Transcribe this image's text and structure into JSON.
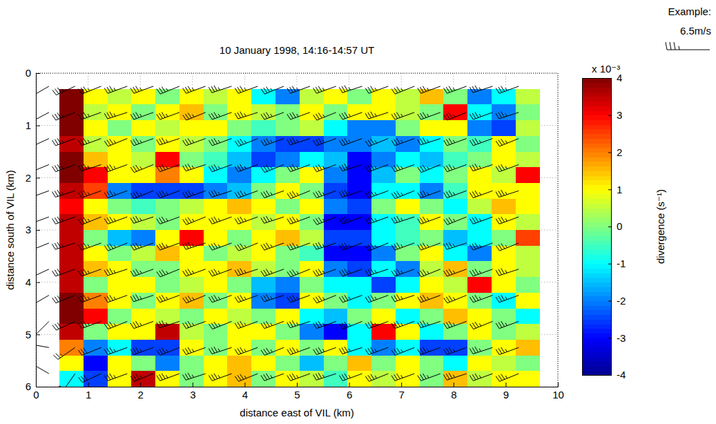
{
  "chart_data": {
    "type": "heatmap",
    "title": "10 January 1998, 14:16-14:57 UT",
    "xlabel": "distance east of VIL (km)",
    "ylabel": "distance south of VIL (km)",
    "xlim": [
      0,
      10
    ],
    "ylim": [
      0,
      6
    ],
    "xticks": [
      0,
      1,
      2,
      3,
      4,
      5,
      6,
      7,
      8,
      9,
      10
    ],
    "yticks": [
      0,
      1,
      2,
      3,
      4,
      5,
      6
    ],
    "grid": true,
    "divergence": {
      "label": "divergence (s⁻¹)",
      "multiplier_label": "x 10⁻³",
      "clim": [
        -4,
        4
      ],
      "cticks": [
        -4,
        -3,
        -2,
        -1,
        0,
        1,
        2,
        3,
        4
      ],
      "x_edges": [
        0.45,
        0.91,
        1.37,
        1.83,
        2.29,
        2.75,
        3.21,
        3.67,
        4.13,
        4.59,
        5.05,
        5.51,
        5.97,
        6.43,
        6.89,
        7.35,
        7.81,
        8.27,
        8.73,
        9.19,
        9.65
      ],
      "y_edges": [
        0.3,
        0.6,
        0.9,
        1.2,
        1.5,
        1.8,
        2.1,
        2.4,
        2.7,
        3.0,
        3.3,
        3.6,
        3.9,
        4.2,
        4.5,
        4.8,
        5.1,
        5.4,
        5.7,
        6.0
      ],
      "values": [
        [
          4,
          1,
          0.5,
          1,
          0,
          1,
          0.5,
          1,
          -1,
          -2,
          0.5,
          1,
          0,
          1,
          0.5,
          1.5,
          0,
          -2,
          -1,
          0.5
        ],
        [
          4,
          0.5,
          1,
          0,
          1,
          1.5,
          0,
          1,
          0.5,
          0,
          1,
          0,
          1,
          1,
          0.5,
          0,
          3,
          -1,
          -2,
          0
        ],
        [
          4,
          1,
          0,
          1,
          0.5,
          1,
          1,
          0,
          -0.5,
          0,
          0.5,
          -1,
          -2,
          -2,
          0,
          1,
          1,
          -2,
          -2.5,
          0.5
        ],
        [
          3.5,
          0.5,
          1,
          0,
          1,
          0.5,
          0,
          -1,
          -2,
          -2.5,
          -2.5,
          -2,
          -2,
          -1.5,
          -2,
          -1,
          0,
          -0.5,
          1,
          0
        ],
        [
          4,
          1.5,
          1,
          0.5,
          3,
          0,
          -0.5,
          -1.5,
          -2.5,
          -2,
          -1,
          -1.5,
          -3,
          -2,
          -1,
          -1.5,
          -0.5,
          0,
          1,
          0.5
        ],
        [
          4,
          3,
          1,
          1,
          2,
          1,
          -1,
          -2,
          -1,
          0,
          1,
          -2,
          -3,
          -1.5,
          0,
          -1,
          0,
          1,
          0.5,
          3
        ],
        [
          3.5,
          2.5,
          -2,
          -2.5,
          -2.5,
          -2.5,
          -2,
          -1.5,
          0,
          1,
          0,
          -2.5,
          -3,
          -1,
          -1,
          -2,
          -0.5,
          1,
          1,
          1
        ],
        [
          3,
          1,
          0,
          -0.5,
          0,
          0.5,
          1,
          1.5,
          1,
          0,
          1,
          -2,
          -2.5,
          0,
          1,
          0,
          -1,
          0.5,
          1.5,
          1
        ],
        [
          3.5,
          1.5,
          1,
          0.5,
          0,
          1,
          1,
          1,
          0.5,
          1,
          0,
          -3,
          -3,
          -1,
          -0.5,
          1,
          0,
          -1,
          1,
          0.5
        ],
        [
          3.5,
          0,
          -1.5,
          -2,
          1,
          3,
          1,
          0,
          1,
          1.5,
          0.5,
          -2.5,
          -2.5,
          -1,
          -0.5,
          0,
          -1.5,
          -1,
          0,
          2.5
        ],
        [
          3.5,
          1,
          0,
          0.5,
          1.5,
          1,
          0,
          0.5,
          1,
          0,
          -0.5,
          -3,
          -3,
          -2,
          0,
          1,
          -1,
          -2,
          1,
          0.5
        ],
        [
          3.5,
          1.5,
          1,
          0,
          0,
          1,
          1,
          1.5,
          0.5,
          0,
          1,
          -2,
          -2.5,
          -1,
          -2,
          0.5,
          1.5,
          0,
          1,
          0.5
        ],
        [
          3.5,
          0,
          1,
          1,
          0,
          0.5,
          1,
          0,
          -1.5,
          -2,
          0,
          -1,
          -1,
          -2.5,
          -1,
          1,
          0.5,
          3,
          1,
          0
        ],
        [
          4,
          2,
          1,
          0,
          1,
          1.5,
          0,
          1,
          -2,
          -2.5,
          1,
          0,
          -1,
          0,
          1,
          1.5,
          1,
          0,
          -1,
          1
        ],
        [
          4,
          3,
          0,
          1,
          0.5,
          0,
          1,
          0.5,
          0,
          1,
          -1,
          -1.5,
          0,
          1,
          -1,
          0,
          1.5,
          1,
          0,
          -1
        ],
        [
          3.5,
          0,
          1,
          1,
          3.5,
          0.5,
          0,
          1,
          1,
          0,
          -2,
          -3,
          -1,
          3,
          1,
          -1,
          0,
          1,
          0,
          0.5
        ],
        [
          2,
          -2,
          -1,
          -2.5,
          -2.5,
          1,
          0,
          1,
          0,
          1,
          0,
          1,
          -1,
          -2,
          -1,
          -2.5,
          -2.5,
          0,
          1,
          1.5
        ],
        [
          1,
          -3,
          1,
          0,
          -2,
          0,
          1,
          1.5,
          1,
          0,
          -1.5,
          0,
          1.5,
          0,
          1,
          0,
          -1,
          1,
          0.5,
          0
        ],
        [
          -1,
          -2.5,
          1,
          3.5,
          1,
          0,
          1,
          1.5,
          0,
          1,
          0.5,
          -0.5,
          1,
          0.5,
          1,
          0,
          1.5,
          0.5,
          1,
          1
        ]
      ]
    },
    "barbs": {
      "x": [
        0.25,
        0.75,
        1.25,
        1.75,
        2.25,
        2.75,
        3.25,
        3.75,
        4.25,
        4.75,
        5.25,
        5.75,
        6.25,
        6.75,
        7.25,
        7.75,
        8.25,
        8.75,
        9.25
      ],
      "y": [
        0.25,
        0.75,
        1.25,
        1.75,
        2.25,
        2.75,
        3.25,
        3.75,
        4.25,
        4.75,
        5.25,
        5.75
      ],
      "speed": [
        [
          6,
          6.5,
          6.5,
          7,
          6.5,
          6.5,
          7,
          6.5,
          6.5,
          6.5,
          7,
          6.5,
          6.5,
          7,
          6.5,
          6.5,
          6.5,
          7,
          6.5
        ],
        [
          6,
          6.5,
          7,
          6.5,
          6.5,
          6.5,
          6.5,
          7,
          6.5,
          7,
          6.5,
          6.5,
          6.5,
          6.5,
          7,
          6.5,
          7,
          6.5,
          6.5
        ],
        [
          6,
          7,
          6.5,
          6.5,
          7,
          6.5,
          6.5,
          6.5,
          7,
          6.5,
          6.5,
          7,
          6.5,
          6.5,
          6.5,
          7,
          6.5,
          6.5,
          7
        ],
        [
          6,
          6.5,
          6.5,
          6.5,
          6.5,
          7,
          6.5,
          6.5,
          6.5,
          6.5,
          7,
          6.5,
          7,
          6.5,
          6.5,
          6.5,
          6.5,
          7,
          6.5
        ],
        [
          5.5,
          6.5,
          7,
          6.5,
          6.5,
          6.5,
          7,
          6.5,
          6.5,
          7,
          6.5,
          6.5,
          6.5,
          7,
          6.5,
          6.5,
          7,
          6.5,
          6.5
        ],
        [
          5.5,
          6.5,
          6.5,
          7,
          6.5,
          6.5,
          6.5,
          7,
          6.5,
          6.5,
          6.5,
          7,
          6.5,
          6.5,
          7,
          6.5,
          6.5,
          6.5,
          7
        ],
        [
          5.5,
          6.5,
          6.5,
          6.5,
          7,
          6.5,
          6.5,
          6.5,
          7,
          6.5,
          7,
          6.5,
          6.5,
          6.5,
          6.5,
          7,
          6.5,
          6.5,
          6.5
        ],
        [
          5,
          6,
          6.5,
          6.5,
          6.5,
          7,
          6.5,
          6.5,
          6.5,
          7,
          6.5,
          6.5,
          7,
          6.5,
          6.5,
          6.5,
          7,
          6.5,
          6.5
        ],
        [
          4.5,
          6,
          6.5,
          7,
          6.5,
          6.5,
          6.5,
          7,
          6.5,
          6.5,
          6.5,
          6.5,
          6.5,
          7,
          6.5,
          6.5,
          6.5,
          7,
          6.5
        ],
        [
          4,
          5.5,
          6.5,
          6.5,
          6.5,
          7,
          6.5,
          6.5,
          6.5,
          7,
          6.5,
          7,
          6.5,
          6.5,
          6.5,
          7,
          6.5,
          6.5,
          6.5
        ],
        [
          3,
          5,
          6,
          6.5,
          7,
          6.5,
          6.5,
          6.5,
          7,
          6.5,
          6.5,
          6.5,
          7,
          6.5,
          6.5,
          6.5,
          6.5,
          7,
          6.5
        ],
        [
          2.5,
          4,
          6,
          6.5,
          6.5,
          6.5,
          7,
          6.5,
          6.5,
          6.5,
          7,
          6.5,
          6.5,
          6.5,
          7,
          6.5,
          6.5,
          6.5,
          7
        ]
      ],
      "direction": [
        [
          240,
          245,
          248,
          250,
          250,
          248,
          250,
          252,
          250,
          248,
          250,
          250,
          252,
          250,
          248,
          250,
          250,
          252,
          250
        ],
        [
          242,
          248,
          250,
          252,
          250,
          250,
          248,
          250,
          252,
          250,
          250,
          248,
          250,
          252,
          250,
          250,
          248,
          250,
          252
        ],
        [
          245,
          250,
          250,
          248,
          250,
          252,
          250,
          250,
          248,
          250,
          252,
          250,
          250,
          248,
          250,
          252,
          250,
          250,
          248
        ],
        [
          248,
          250,
          252,
          250,
          248,
          250,
          252,
          250,
          250,
          248,
          250,
          250,
          252,
          250,
          250,
          248,
          250,
          252,
          250
        ],
        [
          250,
          252,
          250,
          250,
          248,
          250,
          250,
          252,
          250,
          250,
          248,
          250,
          252,
          250,
          248,
          250,
          250,
          250,
          252
        ],
        [
          250,
          250,
          248,
          250,
          252,
          250,
          248,
          250,
          250,
          252,
          250,
          248,
          250,
          250,
          252,
          250,
          248,
          250,
          250
        ],
        [
          248,
          252,
          250,
          248,
          250,
          250,
          252,
          250,
          248,
          250,
          250,
          252,
          250,
          248,
          250,
          250,
          252,
          250,
          248
        ],
        [
          245,
          250,
          250,
          252,
          250,
          248,
          250,
          250,
          252,
          250,
          248,
          250,
          250,
          252,
          250,
          248,
          250,
          250,
          252
        ],
        [
          240,
          248,
          250,
          250,
          252,
          250,
          248,
          250,
          250,
          252,
          250,
          248,
          250,
          250,
          252,
          250,
          248,
          250,
          250
        ],
        [
          225,
          245,
          250,
          248,
          250,
          252,
          250,
          248,
          250,
          250,
          252,
          250,
          248,
          250,
          250,
          252,
          250,
          248,
          250
        ],
        [
          280,
          235,
          248,
          250,
          250,
          248,
          250,
          252,
          250,
          248,
          250,
          250,
          252,
          250,
          248,
          250,
          250,
          252,
          250
        ],
        [
          300,
          215,
          245,
          250,
          248,
          250,
          252,
          250,
          248,
          250,
          250,
          252,
          250,
          248,
          250,
          250,
          252,
          250,
          248
        ]
      ]
    },
    "example": {
      "label": "Example:",
      "speed": 6.5,
      "speed_label": "6.5m/s"
    }
  }
}
